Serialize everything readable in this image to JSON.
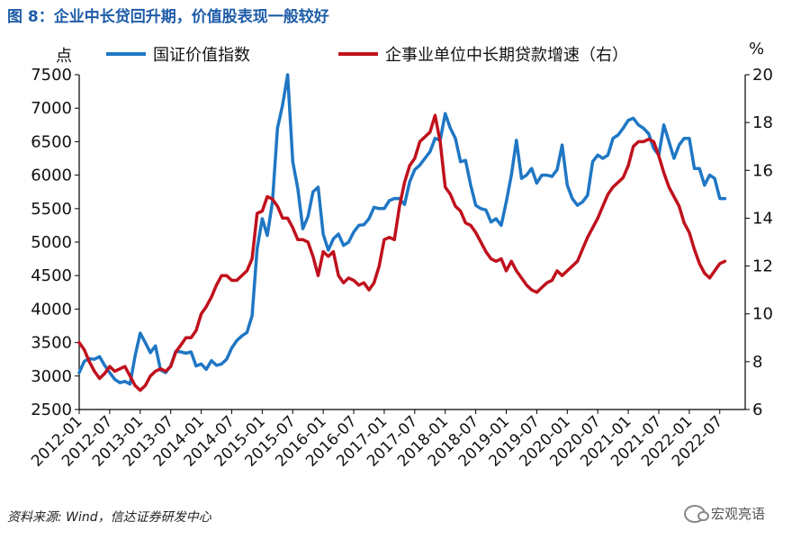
{
  "figure_title": "图 8：企业中长贷回升期，价值股表现一般较好",
  "source_note": "资料来源: Wind，信达证券研发中心",
  "watermark": "宏观亮语",
  "chart_data": {
    "type": "line",
    "left_unit": "点",
    "right_unit": "%",
    "left_ylim": [
      2500,
      7500
    ],
    "left_yticks": [
      2500,
      3000,
      3500,
      4000,
      4500,
      5000,
      5500,
      6000,
      6500,
      7000,
      7500
    ],
    "right_ylim": [
      6,
      20
    ],
    "right_yticks": [
      6,
      8,
      10,
      12,
      14,
      16,
      18,
      20
    ],
    "xlim": [
      "2012-01",
      "2022-12"
    ],
    "x_tick_labels": [
      "2012-01",
      "2012-07",
      "2013-01",
      "2013-07",
      "2014-01",
      "2014-07",
      "2015-01",
      "2015-07",
      "2016-01",
      "2016-07",
      "2017-01",
      "2017-07",
      "2018-01",
      "2018-07",
      "2019-01",
      "2019-07",
      "2020-01",
      "2020-07",
      "2021-01",
      "2021-07",
      "2022-01",
      "2022-07"
    ],
    "grid": false,
    "legend_position": "top",
    "series": [
      {
        "name": "国证价值指数",
        "axis": "left",
        "color": "#1f77c4",
        "points": [
          [
            "2012-01",
            3050
          ],
          [
            "2012-02",
            3220
          ],
          [
            "2012-03",
            3260
          ],
          [
            "2012-04",
            3250
          ],
          [
            "2012-05",
            3290
          ],
          [
            "2012-06",
            3160
          ],
          [
            "2012-07",
            3050
          ],
          [
            "2012-08",
            2950
          ],
          [
            "2012-09",
            2900
          ],
          [
            "2012-10",
            2920
          ],
          [
            "2012-11",
            2880
          ],
          [
            "2012-12",
            3300
          ],
          [
            "2013-01",
            3640
          ],
          [
            "2013-02",
            3500
          ],
          [
            "2013-03",
            3350
          ],
          [
            "2013-04",
            3450
          ],
          [
            "2013-05",
            3090
          ],
          [
            "2013-06",
            3050
          ],
          [
            "2013-07",
            3150
          ],
          [
            "2013-08",
            3370
          ],
          [
            "2013-09",
            3360
          ],
          [
            "2013-10",
            3340
          ],
          [
            "2013-11",
            3360
          ],
          [
            "2013-12",
            3150
          ],
          [
            "2014-01",
            3180
          ],
          [
            "2014-02",
            3100
          ],
          [
            "2014-03",
            3230
          ],
          [
            "2014-04",
            3160
          ],
          [
            "2014-05",
            3180
          ],
          [
            "2014-06",
            3250
          ],
          [
            "2014-07",
            3420
          ],
          [
            "2014-08",
            3530
          ],
          [
            "2014-09",
            3600
          ],
          [
            "2014-10",
            3650
          ],
          [
            "2014-11",
            3900
          ],
          [
            "2014-12",
            4900
          ],
          [
            "2015-01",
            5350
          ],
          [
            "2015-02",
            5100
          ],
          [
            "2015-03",
            5600
          ],
          [
            "2015-04",
            6700
          ],
          [
            "2015-05",
            7050
          ],
          [
            "2015-06",
            7500
          ],
          [
            "2015-07",
            6200
          ],
          [
            "2015-08",
            5800
          ],
          [
            "2015-09",
            5200
          ],
          [
            "2015-10",
            5380
          ],
          [
            "2015-11",
            5750
          ],
          [
            "2015-12",
            5820
          ],
          [
            "2016-01",
            5120
          ],
          [
            "2016-02",
            4880
          ],
          [
            "2016-03",
            5050
          ],
          [
            "2016-04",
            5120
          ],
          [
            "2016-05",
            4950
          ],
          [
            "2016-06",
            5000
          ],
          [
            "2016-07",
            5150
          ],
          [
            "2016-08",
            5250
          ],
          [
            "2016-09",
            5260
          ],
          [
            "2016-10",
            5350
          ],
          [
            "2016-11",
            5520
          ],
          [
            "2016-12",
            5500
          ],
          [
            "2017-01",
            5500
          ],
          [
            "2017-02",
            5620
          ],
          [
            "2017-03",
            5650
          ],
          [
            "2017-04",
            5650
          ],
          [
            "2017-05",
            5560
          ],
          [
            "2017-06",
            5900
          ],
          [
            "2017-07",
            6080
          ],
          [
            "2017-08",
            6150
          ],
          [
            "2017-09",
            6250
          ],
          [
            "2017-10",
            6350
          ],
          [
            "2017-11",
            6550
          ],
          [
            "2017-12",
            6520
          ],
          [
            "2018-01",
            6920
          ],
          [
            "2018-02",
            6700
          ],
          [
            "2018-03",
            6550
          ],
          [
            "2018-04",
            6200
          ],
          [
            "2018-05",
            6220
          ],
          [
            "2018-06",
            5850
          ],
          [
            "2018-07",
            5550
          ],
          [
            "2018-08",
            5500
          ],
          [
            "2018-09",
            5480
          ],
          [
            "2018-10",
            5300
          ],
          [
            "2018-11",
            5350
          ],
          [
            "2018-12",
            5250
          ],
          [
            "2019-01",
            5600
          ],
          [
            "2019-02",
            6000
          ],
          [
            "2019-03",
            6520
          ],
          [
            "2019-04",
            5950
          ],
          [
            "2019-05",
            6000
          ],
          [
            "2019-06",
            6100
          ],
          [
            "2019-07",
            5880
          ],
          [
            "2019-08",
            6000
          ],
          [
            "2019-09",
            6000
          ],
          [
            "2019-10",
            5980
          ],
          [
            "2019-11",
            6080
          ],
          [
            "2019-12",
            6450
          ],
          [
            "2020-01",
            5850
          ],
          [
            "2020-02",
            5650
          ],
          [
            "2020-03",
            5550
          ],
          [
            "2020-04",
            5600
          ],
          [
            "2020-05",
            5700
          ],
          [
            "2020-06",
            6200
          ],
          [
            "2020-07",
            6300
          ],
          [
            "2020-08",
            6250
          ],
          [
            "2020-09",
            6300
          ],
          [
            "2020-10",
            6550
          ],
          [
            "2020-11",
            6600
          ],
          [
            "2020-12",
            6700
          ],
          [
            "2021-01",
            6820
          ],
          [
            "2021-02",
            6850
          ],
          [
            "2021-03",
            6750
          ],
          [
            "2021-04",
            6700
          ],
          [
            "2021-05",
            6620
          ],
          [
            "2021-06",
            6400
          ],
          [
            "2021-07",
            6300
          ],
          [
            "2021-08",
            6750
          ],
          [
            "2021-09",
            6500
          ],
          [
            "2021-10",
            6250
          ],
          [
            "2021-11",
            6450
          ],
          [
            "2021-12",
            6550
          ],
          [
            "2022-01",
            6550
          ],
          [
            "2022-02",
            6100
          ],
          [
            "2022-03",
            6100
          ],
          [
            "2022-04",
            5850
          ],
          [
            "2022-05",
            6000
          ],
          [
            "2022-06",
            5950
          ],
          [
            "2022-07",
            5650
          ],
          [
            "2022-08",
            5650
          ]
        ]
      },
      {
        "name": "企事业单位中长期贷款增速（右）",
        "axis": "right",
        "color": "#c0111d",
        "points": [
          [
            "2012-01",
            8.8
          ],
          [
            "2012-02",
            8.5
          ],
          [
            "2012-03",
            8.0
          ],
          [
            "2012-04",
            7.6
          ],
          [
            "2012-05",
            7.3
          ],
          [
            "2012-06",
            7.5
          ],
          [
            "2012-07",
            7.8
          ],
          [
            "2012-08",
            7.6
          ],
          [
            "2012-09",
            7.7
          ],
          [
            "2012-10",
            7.8
          ],
          [
            "2012-11",
            7.4
          ],
          [
            "2012-12",
            7.0
          ],
          [
            "2013-01",
            6.8
          ],
          [
            "2013-02",
            7.0
          ],
          [
            "2013-03",
            7.4
          ],
          [
            "2013-04",
            7.6
          ],
          [
            "2013-05",
            7.7
          ],
          [
            "2013-06",
            7.6
          ],
          [
            "2013-07",
            7.8
          ],
          [
            "2013-08",
            8.4
          ],
          [
            "2013-09",
            8.7
          ],
          [
            "2013-10",
            9.0
          ],
          [
            "2013-11",
            9.0
          ],
          [
            "2013-12",
            9.3
          ],
          [
            "2014-01",
            10.0
          ],
          [
            "2014-02",
            10.3
          ],
          [
            "2014-03",
            10.7
          ],
          [
            "2014-04",
            11.2
          ],
          [
            "2014-05",
            11.6
          ],
          [
            "2014-06",
            11.6
          ],
          [
            "2014-07",
            11.4
          ],
          [
            "2014-08",
            11.4
          ],
          [
            "2014-09",
            11.6
          ],
          [
            "2014-10",
            11.8
          ],
          [
            "2014-11",
            12.3
          ],
          [
            "2014-12",
            14.2
          ],
          [
            "2015-01",
            14.3
          ],
          [
            "2015-02",
            14.9
          ],
          [
            "2015-03",
            14.8
          ],
          [
            "2015-04",
            14.5
          ],
          [
            "2015-05",
            14.0
          ],
          [
            "2015-06",
            14.0
          ],
          [
            "2015-07",
            13.6
          ],
          [
            "2015-08",
            13.1
          ],
          [
            "2015-09",
            13.1
          ],
          [
            "2015-10",
            13.0
          ],
          [
            "2015-11",
            12.4
          ],
          [
            "2015-12",
            11.6
          ],
          [
            "2016-01",
            12.6
          ],
          [
            "2016-02",
            12.4
          ],
          [
            "2016-03",
            12.6
          ],
          [
            "2016-04",
            11.6
          ],
          [
            "2016-05",
            11.3
          ],
          [
            "2016-06",
            11.5
          ],
          [
            "2016-07",
            11.4
          ],
          [
            "2016-08",
            11.2
          ],
          [
            "2016-09",
            11.3
          ],
          [
            "2016-10",
            11.0
          ],
          [
            "2016-11",
            11.3
          ],
          [
            "2016-12",
            12.0
          ],
          [
            "2017-01",
            13.1
          ],
          [
            "2017-02",
            13.2
          ],
          [
            "2017-03",
            13.1
          ],
          [
            "2017-04",
            14.5
          ],
          [
            "2017-05",
            15.5
          ],
          [
            "2017-06",
            16.2
          ],
          [
            "2017-07",
            16.5
          ],
          [
            "2017-08",
            17.2
          ],
          [
            "2017-09",
            17.4
          ],
          [
            "2017-10",
            17.6
          ],
          [
            "2017-11",
            18.3
          ],
          [
            "2017-12",
            17.2
          ],
          [
            "2018-01",
            15.3
          ],
          [
            "2018-02",
            15.0
          ],
          [
            "2018-03",
            14.5
          ],
          [
            "2018-04",
            14.3
          ],
          [
            "2018-05",
            13.8
          ],
          [
            "2018-06",
            13.7
          ],
          [
            "2018-07",
            13.4
          ],
          [
            "2018-08",
            13.0
          ],
          [
            "2018-09",
            12.6
          ],
          [
            "2018-10",
            12.3
          ],
          [
            "2018-11",
            12.2
          ],
          [
            "2018-12",
            12.3
          ],
          [
            "2019-01",
            11.8
          ],
          [
            "2019-02",
            12.2
          ],
          [
            "2019-03",
            11.8
          ],
          [
            "2019-04",
            11.5
          ],
          [
            "2019-05",
            11.2
          ],
          [
            "2019-06",
            11.0
          ],
          [
            "2019-07",
            10.9
          ],
          [
            "2019-08",
            11.1
          ],
          [
            "2019-09",
            11.3
          ],
          [
            "2019-10",
            11.4
          ],
          [
            "2019-11",
            11.8
          ],
          [
            "2019-12",
            11.6
          ],
          [
            "2020-01",
            11.8
          ],
          [
            "2020-02",
            12.0
          ],
          [
            "2020-03",
            12.2
          ],
          [
            "2020-04",
            12.7
          ],
          [
            "2020-05",
            13.2
          ],
          [
            "2020-06",
            13.6
          ],
          [
            "2020-07",
            14.0
          ],
          [
            "2020-08",
            14.5
          ],
          [
            "2020-09",
            15.0
          ],
          [
            "2020-10",
            15.3
          ],
          [
            "2020-11",
            15.5
          ],
          [
            "2020-12",
            15.7
          ],
          [
            "2021-01",
            16.2
          ],
          [
            "2021-02",
            17.0
          ],
          [
            "2021-03",
            17.2
          ],
          [
            "2021-04",
            17.2
          ],
          [
            "2021-05",
            17.3
          ],
          [
            "2021-06",
            17.2
          ],
          [
            "2021-07",
            16.6
          ],
          [
            "2021-08",
            15.9
          ],
          [
            "2021-09",
            15.3
          ],
          [
            "2021-10",
            14.9
          ],
          [
            "2021-11",
            14.5
          ],
          [
            "2021-12",
            13.8
          ],
          [
            "2022-01",
            13.4
          ],
          [
            "2022-02",
            12.7
          ],
          [
            "2022-03",
            12.1
          ],
          [
            "2022-04",
            11.7
          ],
          [
            "2022-05",
            11.5
          ],
          [
            "2022-06",
            11.8
          ],
          [
            "2022-07",
            12.1
          ],
          [
            "2022-08",
            12.2
          ]
        ]
      }
    ]
  }
}
